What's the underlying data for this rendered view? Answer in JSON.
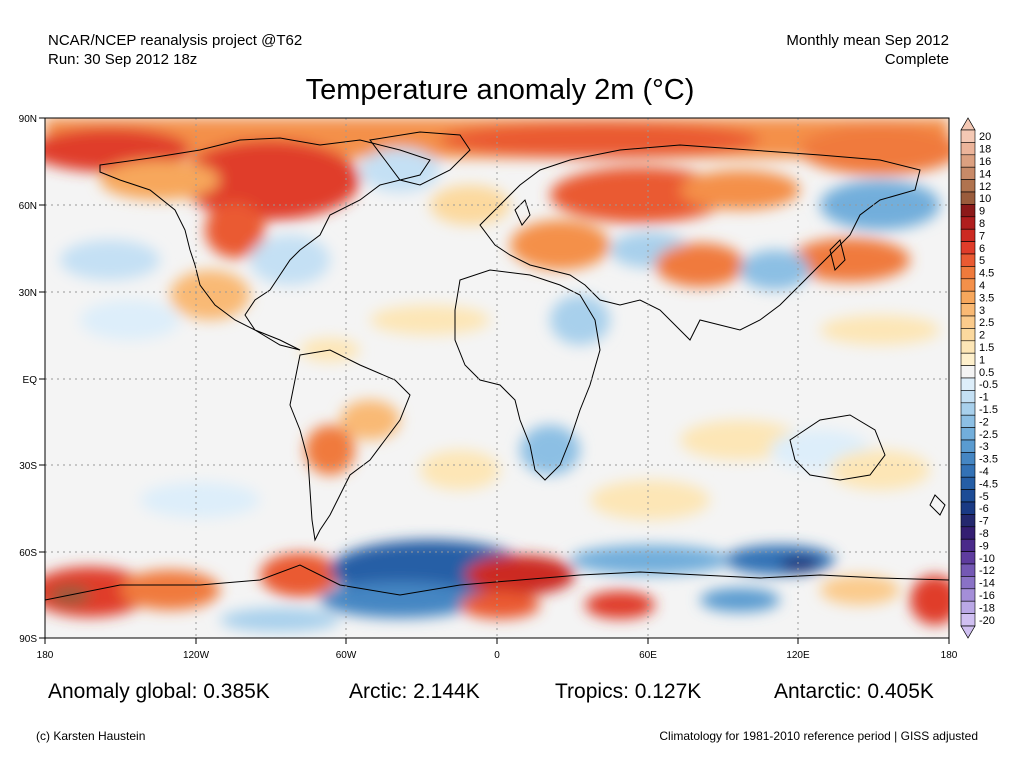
{
  "header": {
    "source_line": "NCAR/NCEP reanalysis project @T62",
    "run_line": "Run: 30 Sep 2012 18z",
    "period_line": "Monthly mean Sep 2012",
    "status_line": "Complete"
  },
  "title": "Temperature anomaly 2m (°C)",
  "map": {
    "lat_labels": [
      "90N",
      "60N",
      "30N",
      "EQ",
      "30S",
      "60S",
      "90S"
    ],
    "lon_labels": [
      "180",
      "120W",
      "60W",
      "0",
      "60E",
      "120E",
      "180"
    ],
    "background_color": "#f4f4f4",
    "grid_style": "dotted"
  },
  "colorbar": {
    "labels": [
      "20",
      "18",
      "16",
      "14",
      "12",
      "10",
      "9",
      "8",
      "7",
      "6",
      "5",
      "4.5",
      "4",
      "3.5",
      "3",
      "2.5",
      "2",
      "1.5",
      "1",
      "0.5",
      "-0.5",
      "-1",
      "-1.5",
      "-2",
      "-2.5",
      "-3",
      "-3.5",
      "-4",
      "-4.5",
      "-5",
      "-6",
      "-7",
      "-8",
      "-9",
      "-10",
      "-12",
      "-14",
      "-16",
      "-18",
      "-20"
    ],
    "colors": [
      "#f4c8b4",
      "#ecb49a",
      "#dca080",
      "#c88a68",
      "#b0734f",
      "#9a5c3c",
      "#8c1a1a",
      "#b01e1e",
      "#cc2a22",
      "#e03c2a",
      "#ea5a32",
      "#f07a3c",
      "#f4904a",
      "#f7a75c",
      "#f9b974",
      "#fbcb8c",
      "#fcd99e",
      "#fde6b6",
      "#fef0cc",
      "#f4f4f4",
      "#ddeefa",
      "#c4e0f4",
      "#a8d0ec",
      "#8cbfe4",
      "#72aedb",
      "#5a9bd0",
      "#4586c3",
      "#3372b6",
      "#255ea6",
      "#1d4c96",
      "#1a3a84",
      "#24286e",
      "#341e72",
      "#4a2a8a",
      "#5e3c9e",
      "#7458b4",
      "#8a72c6",
      "#a48ed8",
      "#baa8e6",
      "#d0c0f2"
    ]
  },
  "stats": {
    "global": "Anomaly global: 0.385K",
    "arctic": "Arctic: 2.144K",
    "tropics": "Tropics: 0.127K",
    "antarctic": "Antarctic: 0.405K"
  },
  "footer": {
    "credit": "(c) Karsten Haustein",
    "note": "Climatology for 1981-2010 reference period | GISS adjusted"
  }
}
